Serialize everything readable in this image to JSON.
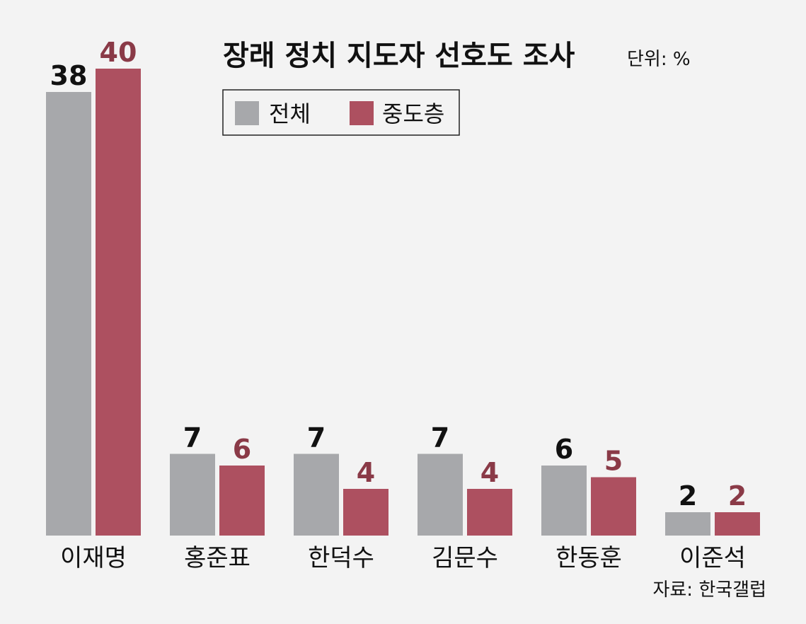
{
  "chart_data": {
    "type": "bar",
    "title": "장래 정치 지도자 선호도 조사",
    "unit_label": "단위: %",
    "source": "자료: 한국갤럽",
    "categories": [
      "이재명",
      "홍준표",
      "한덕수",
      "김문수",
      "한동훈",
      "이준석"
    ],
    "series": [
      {
        "name": "전체",
        "values": [
          38,
          7,
          7,
          7,
          6,
          2
        ],
        "color": "#a7a8ab"
      },
      {
        "name": "중도층",
        "values": [
          40,
          6,
          4,
          4,
          5,
          2
        ],
        "color": "#ad5060"
      }
    ],
    "ylim": [
      0,
      40
    ],
    "grid": false,
    "legend_position": "top-center"
  }
}
